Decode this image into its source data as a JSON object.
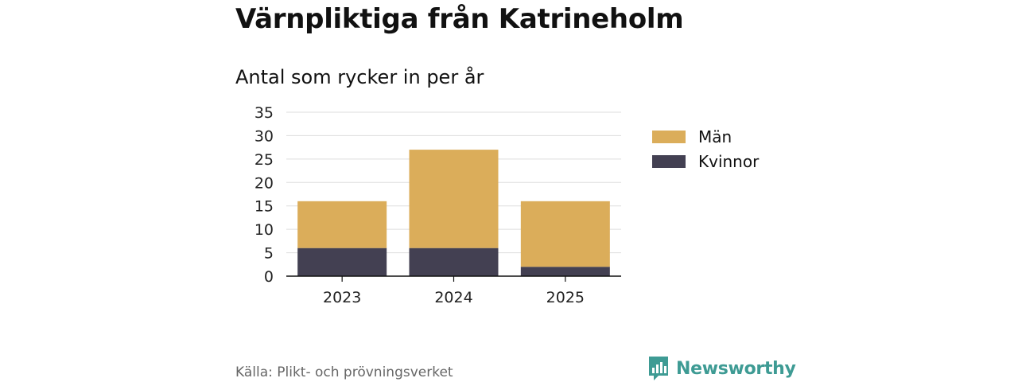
{
  "title": "Värnpliktiga från Katrineholm",
  "subtitle": "Antal som rycker in per år",
  "source": "Källa: Plikt- och prövningsverket",
  "brand": "Newsworthy",
  "colors": {
    "men": "#dbad5a",
    "women": "#434052",
    "grid": "#dddddd",
    "axis": "#111111",
    "brand": "#3e9b94"
  },
  "chart_data": {
    "type": "bar",
    "stacked": true,
    "categories": [
      "2023",
      "2024",
      "2025"
    ],
    "series": [
      {
        "name": "Kvinnor",
        "values": [
          6,
          6,
          2
        ]
      },
      {
        "name": "Män",
        "values": [
          10,
          21,
          14
        ]
      }
    ],
    "legend": [
      "Män",
      "Kvinnor"
    ],
    "legend_position": "right",
    "ylim": [
      0,
      35
    ],
    "yticks": [
      "0",
      "5",
      "10",
      "15",
      "20",
      "25",
      "30",
      "35"
    ],
    "grid": true,
    "xlabel": "",
    "ylabel": ""
  }
}
